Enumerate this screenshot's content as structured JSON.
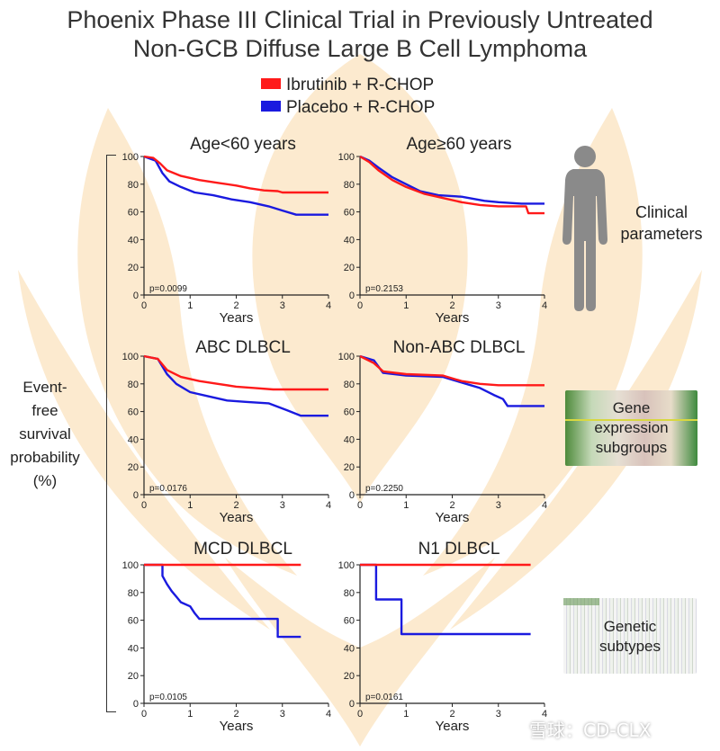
{
  "title_line1": "Phoenix Phase III Clinical Trial in Previously Untreated",
  "title_line2": "Non-GCB Diffuse Large B Cell Lymphoma",
  "legend": [
    {
      "label": "Ibrutinib + R-CHOP",
      "color": "#ff1a1a"
    },
    {
      "label": "Placebo + R-CHOP",
      "color": "#1a1adf"
    }
  ],
  "y_axis_label": [
    "Event-",
    "free",
    "survival",
    "probability",
    "(%)"
  ],
  "side_labels": {
    "clinical": [
      "Clinical",
      "parameters"
    ],
    "gene": [
      "Gene",
      "expression",
      "subgroups"
    ],
    "genetic": [
      "Genetic",
      "subtypes"
    ]
  },
  "watermark": "雪球：CD-CLX",
  "chart_data": [
    {
      "type": "line",
      "title": "Age<60 years",
      "xlabel": "Years",
      "ylabel": "",
      "xlim": [
        0,
        4
      ],
      "ylim": [
        0,
        100
      ],
      "x_ticks": [
        0,
        1,
        2,
        3,
        4
      ],
      "y_ticks": [
        0,
        20,
        40,
        60,
        80,
        100
      ],
      "annotation": "p=0.0099",
      "series": [
        {
          "name": "Ibrutinib + R-CHOP",
          "color": "#ff1a1a",
          "points": [
            [
              0,
              100
            ],
            [
              0.2,
              99
            ],
            [
              0.35,
              95
            ],
            [
              0.5,
              90
            ],
            [
              0.8,
              86
            ],
            [
              1.2,
              83
            ],
            [
              1.6,
              81
            ],
            [
              2,
              79
            ],
            [
              2.3,
              77
            ],
            [
              2.6,
              75.5
            ],
            [
              2.9,
              75
            ],
            [
              3.0,
              74
            ],
            [
              4.0,
              74
            ]
          ]
        },
        {
          "name": "Placebo + R-CHOP",
          "color": "#1a1adf",
          "points": [
            [
              0,
              100
            ],
            [
              0.25,
              97
            ],
            [
              0.4,
              88
            ],
            [
              0.55,
              82
            ],
            [
              0.8,
              78
            ],
            [
              1.1,
              74
            ],
            [
              1.5,
              72
            ],
            [
              1.9,
              69
            ],
            [
              2.3,
              67
            ],
            [
              2.7,
              64
            ],
            [
              3.0,
              61
            ],
            [
              3.3,
              58
            ],
            [
              4.0,
              58
            ]
          ]
        }
      ]
    },
    {
      "type": "line",
      "title": "Age≥60 years",
      "xlabel": "Years",
      "ylabel": "",
      "xlim": [
        0,
        4
      ],
      "ylim": [
        0,
        100
      ],
      "x_ticks": [
        0,
        1,
        2,
        3,
        4
      ],
      "y_ticks": [
        0,
        20,
        40,
        60,
        80,
        100
      ],
      "annotation": "p=0.2153",
      "series": [
        {
          "name": "Ibrutinib + R-CHOP",
          "color": "#ff1a1a",
          "points": [
            [
              0,
              100
            ],
            [
              0.2,
              96
            ],
            [
              0.4,
              90
            ],
            [
              0.7,
              83
            ],
            [
              1.0,
              78
            ],
            [
              1.4,
              73
            ],
            [
              1.8,
              70
            ],
            [
              2.2,
              67
            ],
            [
              2.6,
              65
            ],
            [
              3.0,
              64
            ],
            [
              3.6,
              64
            ],
            [
              3.65,
              59
            ],
            [
              4.0,
              59
            ]
          ]
        },
        {
          "name": "Placebo + R-CHOP",
          "color": "#1a1adf",
          "points": [
            [
              0,
              100
            ],
            [
              0.2,
              97
            ],
            [
              0.4,
              92
            ],
            [
              0.7,
              85
            ],
            [
              1.0,
              80
            ],
            [
              1.3,
              75
            ],
            [
              1.7,
              72
            ],
            [
              2.2,
              71
            ],
            [
              2.7,
              68
            ],
            [
              3.0,
              67
            ],
            [
              3.5,
              66
            ],
            [
              4.0,
              66
            ]
          ]
        }
      ]
    },
    {
      "type": "line",
      "title": "ABC DLBCL",
      "xlabel": "Years",
      "ylabel": "",
      "xlim": [
        0,
        4
      ],
      "ylim": [
        0,
        100
      ],
      "x_ticks": [
        0,
        1,
        2,
        3,
        4
      ],
      "y_ticks": [
        0,
        20,
        40,
        60,
        80,
        100
      ],
      "annotation": "p=0.0176",
      "series": [
        {
          "name": "Ibrutinib + R-CHOP",
          "color": "#ff1a1a",
          "points": [
            [
              0,
              100
            ],
            [
              0.3,
              98
            ],
            [
              0.5,
              90
            ],
            [
              0.8,
              85
            ],
            [
              1.2,
              82
            ],
            [
              1.6,
              80
            ],
            [
              2,
              78
            ],
            [
              2.4,
              77
            ],
            [
              2.8,
              76
            ],
            [
              4.0,
              76
            ]
          ]
        },
        {
          "name": "Placebo + R-CHOP",
          "color": "#1a1adf",
          "points": [
            [
              0,
              100
            ],
            [
              0.3,
              98
            ],
            [
              0.5,
              87
            ],
            [
              0.7,
              80
            ],
            [
              1.0,
              74
            ],
            [
              1.4,
              71
            ],
            [
              1.8,
              68
            ],
            [
              2.2,
              67
            ],
            [
              2.7,
              66
            ],
            [
              3.1,
              61
            ],
            [
              3.4,
              57
            ],
            [
              4.0,
              57
            ]
          ]
        }
      ]
    },
    {
      "type": "line",
      "title": "Non-ABC DLBCL",
      "xlabel": "Years",
      "ylabel": "",
      "xlim": [
        0,
        4
      ],
      "ylim": [
        0,
        100
      ],
      "x_ticks": [
        0,
        1,
        2,
        3,
        4
      ],
      "y_ticks": [
        0,
        20,
        40,
        60,
        80,
        100
      ],
      "annotation": "p=0.2250",
      "series": [
        {
          "name": "Ibrutinib + R-CHOP",
          "color": "#ff1a1a",
          "points": [
            [
              0,
              100
            ],
            [
              0.3,
              95
            ],
            [
              0.5,
              89
            ],
            [
              1.0,
              87
            ],
            [
              1.8,
              86
            ],
            [
              2.2,
              82
            ],
            [
              2.6,
              80
            ],
            [
              3.0,
              79
            ],
            [
              4.0,
              79
            ]
          ]
        },
        {
          "name": "Placebo + R-CHOP",
          "color": "#1a1adf",
          "points": [
            [
              0,
              100
            ],
            [
              0.3,
              97
            ],
            [
              0.5,
              88
            ],
            [
              1.0,
              86
            ],
            [
              1.8,
              85
            ],
            [
              2.0,
              83
            ],
            [
              2.4,
              79
            ],
            [
              2.6,
              77
            ],
            [
              2.9,
              72
            ],
            [
              3.1,
              69
            ],
            [
              3.2,
              64
            ],
            [
              4.0,
              64
            ]
          ]
        }
      ]
    },
    {
      "type": "line",
      "title": "MCD DLBCL",
      "xlabel": "Years",
      "ylabel": "",
      "xlim": [
        0,
        4
      ],
      "ylim": [
        0,
        100
      ],
      "x_ticks": [
        0,
        1,
        2,
        3,
        4
      ],
      "y_ticks": [
        0,
        20,
        40,
        60,
        80,
        100
      ],
      "annotation": "p=0.0105",
      "series": [
        {
          "name": "Ibrutinib + R-CHOP",
          "color": "#ff1a1a",
          "points": [
            [
              0,
              100
            ],
            [
              3.4,
              100
            ]
          ]
        },
        {
          "name": "Placebo + R-CHOP",
          "color": "#1a1adf",
          "points": [
            [
              0,
              100
            ],
            [
              0.4,
              100
            ],
            [
              0.4,
              92
            ],
            [
              0.5,
              86
            ],
            [
              0.6,
              81
            ],
            [
              0.7,
              77
            ],
            [
              0.8,
              73
            ],
            [
              1.0,
              70
            ],
            [
              1.1,
              65
            ],
            [
              1.2,
              61
            ],
            [
              2.9,
              61
            ],
            [
              2.9,
              48
            ],
            [
              3.4,
              48
            ]
          ]
        }
      ]
    },
    {
      "type": "line",
      "title": "N1 DLBCL",
      "xlabel": "Years",
      "ylabel": "",
      "xlim": [
        0,
        4
      ],
      "ylim": [
        0,
        100
      ],
      "x_ticks": [
        0,
        1,
        2,
        3,
        4
      ],
      "y_ticks": [
        0,
        20,
        40,
        60,
        80,
        100
      ],
      "annotation": "p=0.0161",
      "series": [
        {
          "name": "Ibrutinib + R-CHOP",
          "color": "#ff1a1a",
          "points": [
            [
              0,
              100
            ],
            [
              3.7,
              100
            ]
          ]
        },
        {
          "name": "Placebo + R-CHOP",
          "color": "#1a1adf",
          "points": [
            [
              0,
              100
            ],
            [
              0.35,
              100
            ],
            [
              0.35,
              75
            ],
            [
              0.9,
              75
            ],
            [
              0.9,
              50
            ],
            [
              3.7,
              50
            ]
          ]
        }
      ]
    }
  ]
}
